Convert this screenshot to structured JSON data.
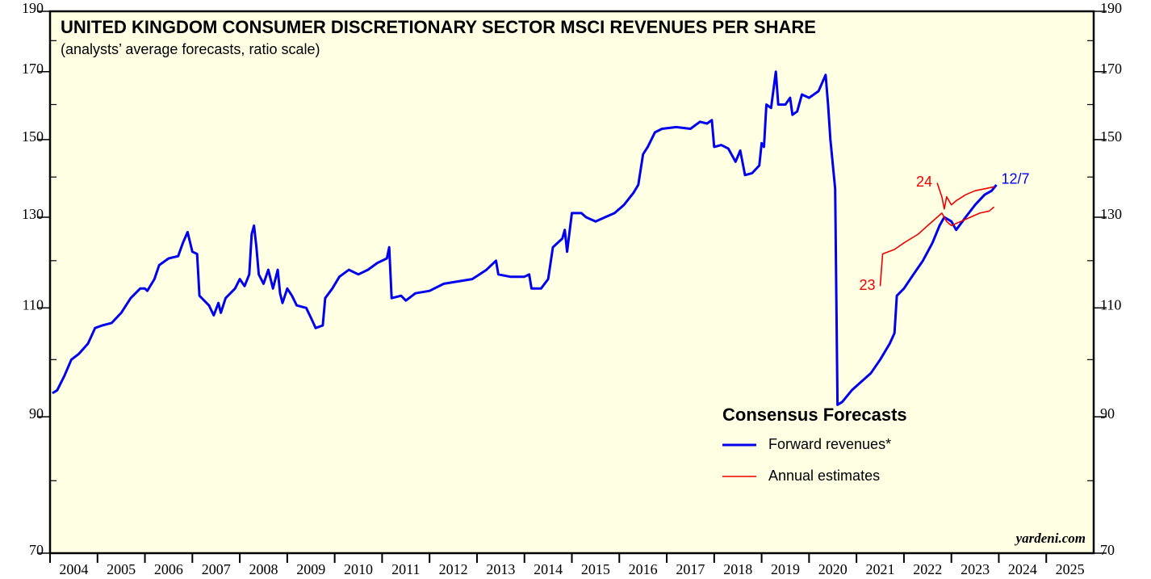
{
  "chart_data": {
    "type": "line",
    "title": "UNITED KINGDOM CONSUMER DISCRETIONARY SECTOR MSCI REVENUES PER SHARE",
    "subtitle": "(analysts’ average forecasts, ratio scale)",
    "log_scale": true,
    "ylim": [
      70,
      190
    ],
    "yticks": [
      70,
      90,
      110,
      130,
      150,
      170,
      190
    ],
    "yminor_ticks": [
      80,
      100,
      120,
      140,
      160,
      180
    ],
    "xlim": [
      2004,
      2026
    ],
    "xticks": [
      2004,
      2005,
      2006,
      2007,
      2008,
      2009,
      2010,
      2011,
      2012,
      2013,
      2014,
      2015,
      2016,
      2017,
      2018,
      2019,
      2020,
      2021,
      2022,
      2023,
      2024,
      2025
    ],
    "legend_title": "Consensus Forecasts",
    "source": "yardeni.com",
    "series": [
      {
        "name": "Forward revenues*",
        "color": "#0000ee",
        "label": "12/7",
        "x": [
          2004.05,
          2004.15,
          2004.3,
          2004.45,
          2004.6,
          2004.8,
          2004.95,
          2005.1,
          2005.3,
          2005.5,
          2005.7,
          2005.9,
          2006.0,
          2006.05,
          2006.2,
          2006.3,
          2006.5,
          2006.7,
          2006.8,
          2006.9,
          2007.0,
          2007.1,
          2007.15,
          2007.35,
          2007.45,
          2007.55,
          2007.6,
          2007.7,
          2007.9,
          2008.0,
          2008.1,
          2008.2,
          2008.25,
          2008.3,
          2008.35,
          2008.4,
          2008.5,
          2008.6,
          2008.7,
          2008.8,
          2008.85,
          2008.9,
          2009.0,
          2009.1,
          2009.2,
          2009.4,
          2009.5,
          2009.6,
          2009.75,
          2009.8,
          2009.95,
          2010.1,
          2010.3,
          2010.5,
          2010.7,
          2010.9,
          2011.1,
          2011.15,
          2011.2,
          2011.4,
          2011.5,
          2011.7,
          2012.0,
          2012.3,
          2012.6,
          2012.9,
          2013.2,
          2013.4,
          2013.45,
          2013.7,
          2014.0,
          2014.1,
          2014.15,
          2014.35,
          2014.5,
          2014.6,
          2014.8,
          2014.85,
          2014.9,
          2015.0,
          2015.2,
          2015.3,
          2015.5,
          2015.7,
          2015.9,
          2016.1,
          2016.3,
          2016.4,
          2016.5,
          2016.6,
          2016.75,
          2016.9,
          2017.2,
          2017.5,
          2017.7,
          2017.85,
          2017.95,
          2018.0,
          2018.15,
          2018.3,
          2018.45,
          2018.55,
          2018.65,
          2018.8,
          2018.95,
          2019.0,
          2019.05,
          2019.1,
          2019.2,
          2019.3,
          2019.35,
          2019.5,
          2019.6,
          2019.65,
          2019.75,
          2019.85,
          2020.0,
          2020.2,
          2020.35,
          2020.4,
          2020.45,
          2020.55,
          2020.6,
          2020.7,
          2020.9,
          2021.1,
          2021.3,
          2021.5,
          2021.7,
          2021.8,
          2021.85,
          2022.0,
          2022.2,
          2022.4,
          2022.6,
          2022.75,
          2022.85,
          2023.0,
          2023.1,
          2023.3,
          2023.5,
          2023.7,
          2023.85,
          2023.95
        ],
        "values": [
          94,
          94.5,
          97,
          100,
          101,
          103,
          106,
          106.5,
          107,
          109,
          112,
          114,
          114,
          113.5,
          116,
          119,
          120.5,
          121,
          124,
          126.5,
          122,
          121.5,
          112.5,
          110.5,
          108.5,
          111,
          109,
          112,
          114,
          116,
          114.5,
          117,
          126,
          128,
          123,
          117,
          115,
          118,
          114,
          118,
          113,
          111,
          114,
          112.5,
          110.5,
          110,
          108,
          106,
          106.5,
          112,
          114,
          116.5,
          118,
          117,
          118,
          119.5,
          120.5,
          123,
          112,
          112.5,
          111.5,
          113,
          113.5,
          115,
          115.5,
          116,
          118,
          120,
          117,
          116.5,
          116.5,
          117,
          114,
          114,
          116,
          123,
          125,
          127,
          122,
          131,
          131,
          130,
          129,
          130,
          131,
          133,
          136,
          138,
          146,
          148,
          152,
          153,
          153.5,
          153,
          155,
          154.5,
          155.5,
          148,
          148.5,
          147.5,
          144,
          147,
          140.5,
          141,
          143,
          149,
          148,
          160,
          159,
          170,
          160,
          160,
          162,
          157,
          158,
          163,
          162,
          164,
          169,
          160,
          150,
          137,
          92,
          92.5,
          94.5,
          96,
          97.5,
          100,
          103,
          105,
          112.5,
          114,
          117,
          120,
          124,
          128,
          130,
          129,
          127,
          130,
          133,
          135.5,
          136.5,
          138
        ]
      },
      {
        "name": "Annual estimates",
        "color": "#ee0000",
        "label": "23",
        "x": [
          2021.5,
          2021.55,
          2021.8,
          2022.0,
          2022.3,
          2022.5,
          2022.7,
          2022.8,
          2022.9,
          2023.0,
          2023.2,
          2023.4,
          2023.6,
          2023.8,
          2023.9
        ],
        "values": [
          114.5,
          121.5,
          122.5,
          124,
          126,
          128,
          130,
          131,
          129,
          128,
          129,
          130,
          131,
          131.5,
          132.5
        ]
      },
      {
        "color": "#ee0000",
        "label": "24",
        "x": [
          2022.7,
          2022.8,
          2022.85,
          2022.9,
          2023.0,
          2023.1,
          2023.3,
          2023.5,
          2023.7,
          2023.9
        ],
        "values": [
          138.5,
          135,
          132,
          135,
          133,
          134,
          135.5,
          136.5,
          137,
          137.5
        ]
      }
    ]
  }
}
